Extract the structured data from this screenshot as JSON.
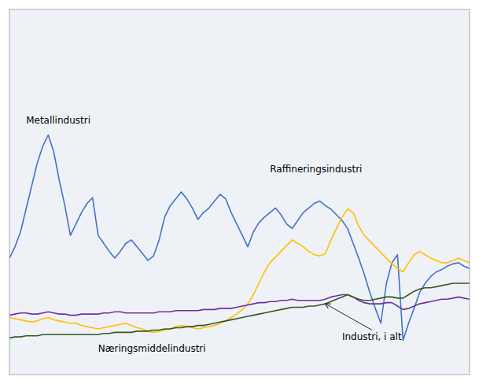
{
  "chart_data": {
    "type": "line",
    "x": [
      0,
      1,
      2,
      3,
      4,
      5,
      6,
      7,
      8,
      9,
      10,
      11,
      12,
      13,
      14,
      15,
      16,
      17,
      18,
      19,
      20,
      21,
      22,
      23,
      24,
      25,
      26,
      27,
      28,
      29,
      30,
      31,
      32,
      33,
      34,
      35,
      36,
      37,
      38,
      39,
      40,
      41,
      42,
      43,
      44,
      45,
      46,
      47,
      48,
      49,
      50,
      51,
      52,
      53,
      54,
      55,
      56,
      57,
      58,
      59,
      60,
      61,
      62,
      63,
      64,
      65,
      66,
      67,
      68,
      69,
      70,
      71,
      72,
      73,
      74,
      75,
      76,
      77,
      78,
      79,
      80,
      81,
      82,
      83
    ],
    "series": [
      {
        "name": "Raffineringsindustri",
        "color": "#4472C4",
        "values": [
          152,
          162,
          175,
          195,
          215,
          235,
          250,
          260,
          245,
          220,
          198,
          172,
          182,
          192,
          200,
          205,
          172,
          165,
          158,
          152,
          158,
          165,
          168,
          162,
          156,
          150,
          154,
          168,
          188,
          198,
          204,
          210,
          204,
          196,
          186,
          192,
          196,
          202,
          208,
          204,
          192,
          182,
          172,
          162,
          175,
          183,
          188,
          192,
          196,
          190,
          182,
          178,
          185,
          192,
          196,
          200,
          202,
          198,
          195,
          190,
          185,
          178,
          165,
          152,
          138,
          122,
          108,
          95,
          130,
          148,
          155,
          80,
          95,
          108,
          122,
          130,
          136,
          140,
          142,
          145,
          147,
          148,
          145,
          143
        ]
      },
      {
        "name": "Metallindustri",
        "color": "#FFC000",
        "values": [
          100,
          99,
          98,
          97,
          96,
          97,
          99,
          100,
          98,
          97,
          96,
          95,
          95,
          93,
          92,
          91,
          90,
          91,
          92,
          93,
          94,
          95,
          93,
          91,
          90,
          88,
          87,
          88,
          89,
          90,
          92,
          93,
          92,
          91,
          90,
          91,
          92,
          93,
          95,
          97,
          100,
          103,
          107,
          112,
          120,
          130,
          140,
          148,
          153,
          158,
          163,
          168,
          165,
          162,
          158,
          155,
          154,
          156,
          168,
          178,
          188,
          195,
          192,
          180,
          172,
          167,
          162,
          157,
          152,
          147,
          143,
          140,
          148,
          155,
          158,
          155,
          152,
          150,
          148,
          148,
          150,
          152,
          150,
          148
        ]
      },
      {
        "name": "Industri, i alt",
        "color": "#7030A0",
        "values": [
          102,
          103,
          104,
          104,
          103,
          103,
          104,
          105,
          104,
          103,
          103,
          102,
          102,
          103,
          103,
          103,
          103,
          104,
          104,
          105,
          105,
          104,
          104,
          104,
          104,
          104,
          104,
          105,
          105,
          105,
          106,
          106,
          106,
          106,
          106,
          107,
          107,
          107,
          108,
          108,
          108,
          109,
          110,
          111,
          112,
          113,
          113,
          114,
          114,
          115,
          115,
          116,
          115,
          115,
          115,
          115,
          115,
          116,
          118,
          119,
          120,
          120,
          118,
          115,
          113,
          112,
          112,
          112,
          113,
          113,
          110,
          107,
          108,
          110,
          112,
          113,
          114,
          115,
          116,
          116,
          117,
          118,
          117,
          116
        ]
      },
      {
        "name": "Næringsmiddelindustri",
        "color": "#375623",
        "values": [
          82,
          83,
          83,
          84,
          84,
          84,
          85,
          85,
          85,
          85,
          85,
          85,
          85,
          85,
          85,
          85,
          85,
          86,
          86,
          87,
          87,
          87,
          87,
          88,
          88,
          88,
          89,
          89,
          90,
          90,
          91,
          91,
          92,
          92,
          93,
          93,
          94,
          95,
          96,
          97,
          98,
          99,
          100,
          101,
          102,
          103,
          104,
          105,
          106,
          107,
          108,
          109,
          109,
          109,
          110,
          110,
          111,
          112,
          114,
          116,
          118,
          120,
          118,
          116,
          115,
          115,
          116,
          117,
          118,
          118,
          117,
          117,
          120,
          123,
          125,
          126,
          126,
          127,
          128,
          129,
          130,
          130,
          130,
          130
        ]
      }
    ],
    "annotations": [
      {
        "text": "Raffineringsindustri",
        "x": 47,
        "y": 225
      },
      {
        "text": "Metallindustri",
        "x": 3,
        "y": 268
      },
      {
        "text": "Næringsmiddelindustri",
        "x": 16,
        "y": 68
      },
      {
        "text": "Industri, i alt",
        "x": 60,
        "y": 78,
        "arrow_x": 57,
        "arrow_y": 112
      }
    ],
    "xlim": [
      0,
      83
    ],
    "ylim": [
      50,
      370
    ],
    "xticks": [],
    "yticks": [],
    "tick_labels": false,
    "grid": false
  }
}
